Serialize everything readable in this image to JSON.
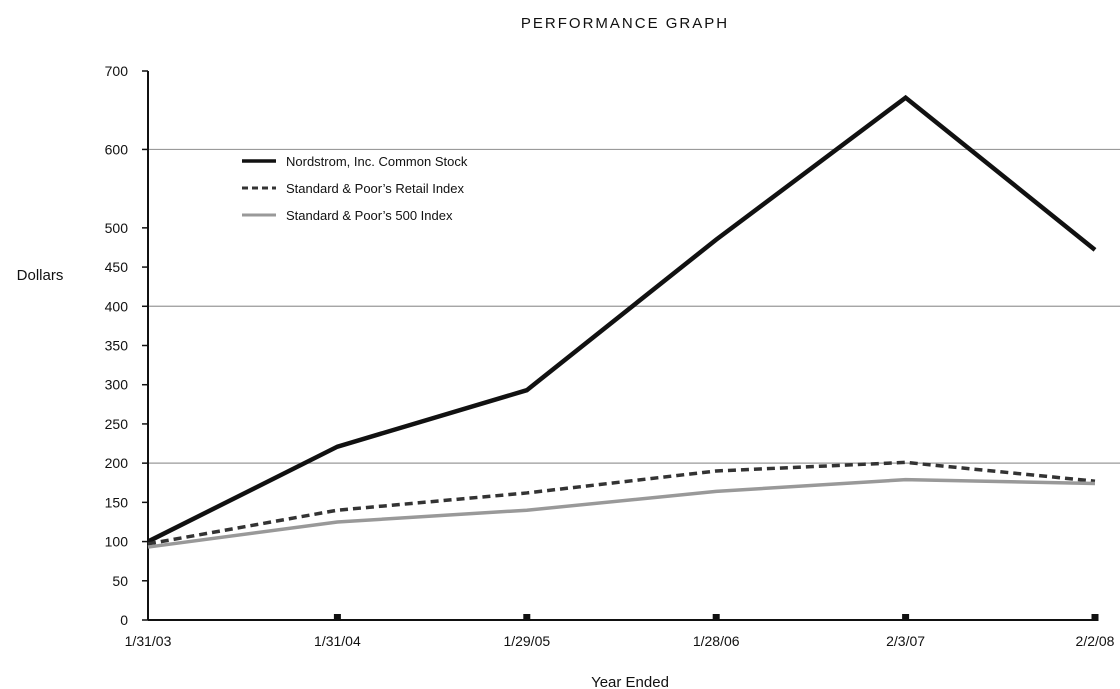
{
  "chart_data": {
    "type": "line",
    "title": "PERFORMANCE GRAPH",
    "xlabel": "Year Ended",
    "ylabel": "Dollars",
    "categories": [
      "1/31/03",
      "1/31/04",
      "1/29/05",
      "1/28/06",
      "2/3/07",
      "2/2/08"
    ],
    "y_ticks": [
      0,
      50,
      100,
      150,
      200,
      250,
      300,
      350,
      400,
      450,
      500,
      600,
      700
    ],
    "ylim": [
      0,
      700
    ],
    "series": [
      {
        "name": "Nordstrom, Inc. Common Stock",
        "values": [
          100,
          221,
          293,
          485,
          666,
          472
        ],
        "color": "#111111",
        "style": "solid"
      },
      {
        "name": "Standard & Poor’s Retail Index",
        "values": [
          97,
          140,
          162,
          190,
          201,
          177
        ],
        "color": "#333333",
        "style": "dashed"
      },
      {
        "name": "Standard & Poor’s 500 Index",
        "values": [
          93,
          125,
          140,
          164,
          179,
          174
        ],
        "color": "#999999",
        "style": "solid"
      }
    ],
    "grid": "major lines at 200, 400, 600",
    "legend": "top-left"
  }
}
